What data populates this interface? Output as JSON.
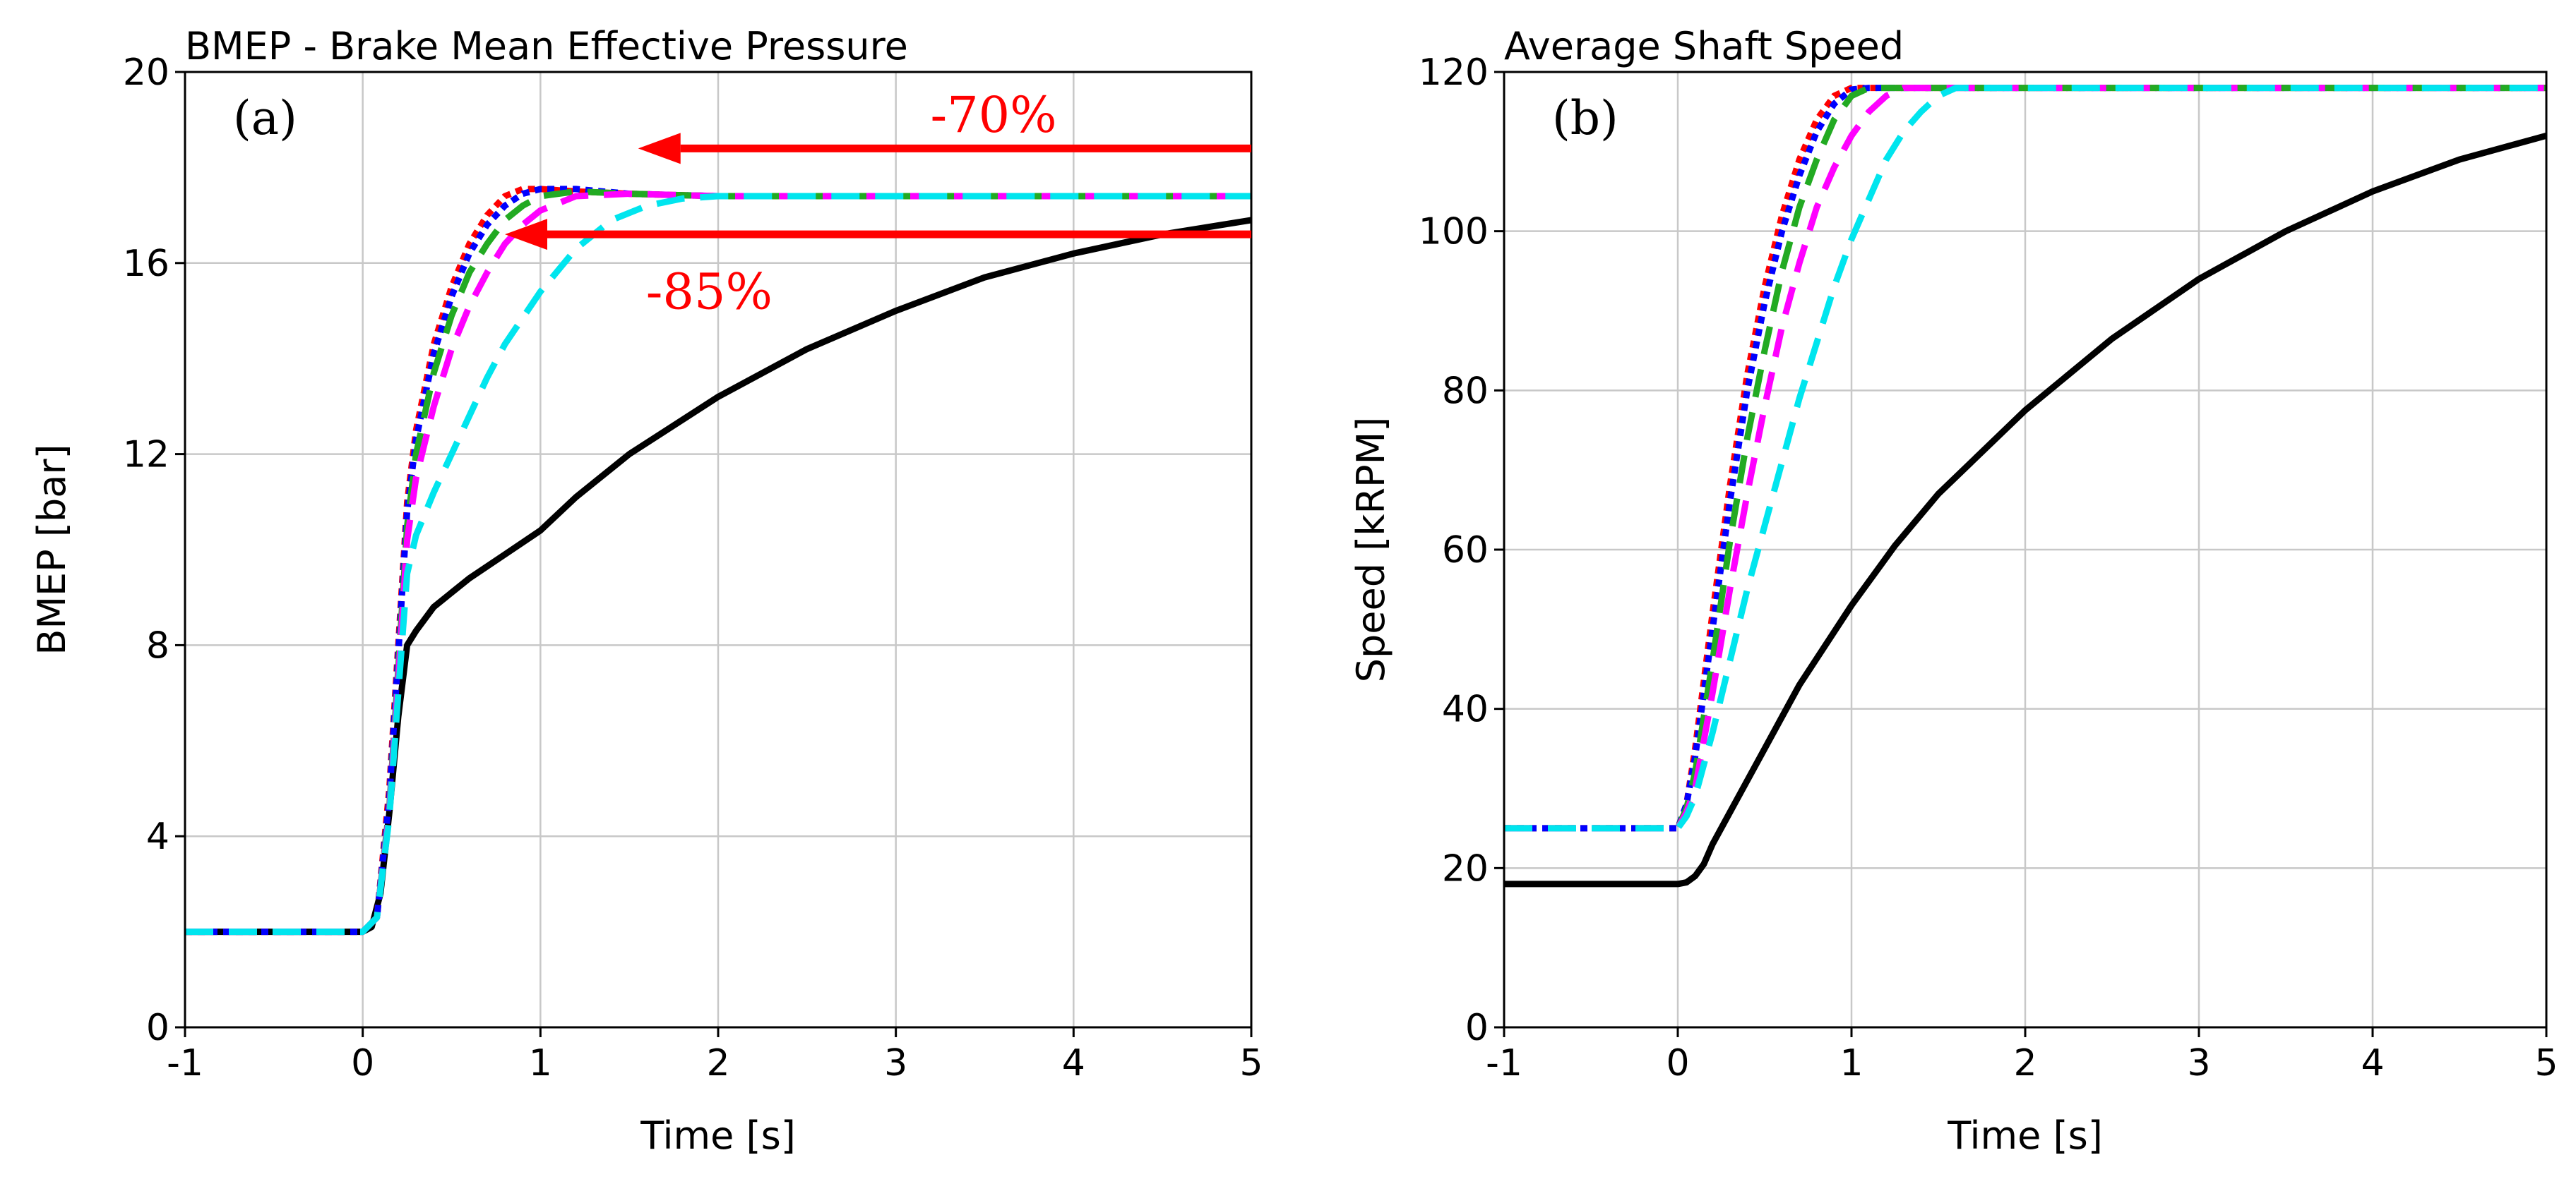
{
  "chart_data": [
    {
      "type": "line",
      "panel_label": "(a)",
      "title": "BMEP - Brake Mean Effective Pressure",
      "xlabel": "Time [s]",
      "ylabel": "BMEP [bar]",
      "xlim": [
        -1,
        5
      ],
      "ylim": [
        0,
        20
      ],
      "xticks": [
        -1,
        0,
        1,
        2,
        3,
        4,
        5
      ],
      "yticks": [
        0,
        4,
        8,
        12,
        16,
        20
      ],
      "grid": true,
      "series": [
        {
          "name": "black solid",
          "color": "#000000",
          "style": "solid",
          "points": [
            [
              -1,
              2
            ],
            [
              0,
              2
            ],
            [
              0.05,
              2.1
            ],
            [
              0.1,
              2.8
            ],
            [
              0.15,
              4.5
            ],
            [
              0.2,
              6.5
            ],
            [
              0.25,
              8
            ],
            [
              0.3,
              8.3
            ],
            [
              0.4,
              8.8
            ],
            [
              0.5,
              9.1
            ],
            [
              0.6,
              9.4
            ],
            [
              0.8,
              9.9
            ],
            [
              1.0,
              10.4
            ],
            [
              1.2,
              11.1
            ],
            [
              1.5,
              12.0
            ],
            [
              2.0,
              13.2
            ],
            [
              2.5,
              14.2
            ],
            [
              3.0,
              15.0
            ],
            [
              3.5,
              15.7
            ],
            [
              4.0,
              16.2
            ],
            [
              4.5,
              16.6
            ],
            [
              5.0,
              16.9
            ]
          ]
        },
        {
          "name": "red dotted",
          "color": "#ff0000",
          "style": "dot",
          "points": [
            [
              -1,
              2
            ],
            [
              0,
              2
            ],
            [
              0.08,
              2.3
            ],
            [
              0.15,
              5
            ],
            [
              0.2,
              8
            ],
            [
              0.25,
              11
            ],
            [
              0.3,
              12.5
            ],
            [
              0.4,
              14.3
            ],
            [
              0.5,
              15.5
            ],
            [
              0.6,
              16.4
            ],
            [
              0.7,
              17.0
            ],
            [
              0.8,
              17.4
            ],
            [
              0.9,
              17.55
            ],
            [
              1.0,
              17.55
            ],
            [
              1.2,
              17.5
            ],
            [
              1.5,
              17.45
            ],
            [
              2.0,
              17.4
            ],
            [
              5.0,
              17.4
            ]
          ]
        },
        {
          "name": "blue dotted",
          "color": "#0000ff",
          "style": "dot",
          "points": [
            [
              -1,
              2
            ],
            [
              0,
              2
            ],
            [
              0.08,
              2.3
            ],
            [
              0.15,
              4.8
            ],
            [
              0.2,
              7.8
            ],
            [
              0.25,
              10.8
            ],
            [
              0.3,
              12.3
            ],
            [
              0.4,
              14.1
            ],
            [
              0.5,
              15.3
            ],
            [
              0.6,
              16.2
            ],
            [
              0.7,
              16.8
            ],
            [
              0.8,
              17.2
            ],
            [
              0.9,
              17.45
            ],
            [
              1.0,
              17.55
            ],
            [
              1.2,
              17.55
            ],
            [
              1.5,
              17.45
            ],
            [
              2.0,
              17.4
            ],
            [
              5.0,
              17.4
            ]
          ]
        },
        {
          "name": "green dashed",
          "color": "#22aa22",
          "style": "dash",
          "points": [
            [
              -1,
              2
            ],
            [
              0,
              2
            ],
            [
              0.08,
              2.3
            ],
            [
              0.15,
              4.6
            ],
            [
              0.2,
              7.5
            ],
            [
              0.25,
              10.5
            ],
            [
              0.3,
              12.0
            ],
            [
              0.4,
              13.7
            ],
            [
              0.5,
              14.9
            ],
            [
              0.6,
              15.8
            ],
            [
              0.7,
              16.4
            ],
            [
              0.8,
              16.9
            ],
            [
              0.9,
              17.2
            ],
            [
              1.0,
              17.4
            ],
            [
              1.2,
              17.5
            ],
            [
              1.5,
              17.45
            ],
            [
              2.0,
              17.4
            ],
            [
              5.0,
              17.4
            ]
          ]
        },
        {
          "name": "magenta dashed",
          "color": "#ff00ff",
          "style": "dash",
          "points": [
            [
              -1,
              2
            ],
            [
              0,
              2
            ],
            [
              0.08,
              2.3
            ],
            [
              0.15,
              4.5
            ],
            [
              0.2,
              7.3
            ],
            [
              0.25,
              10.2
            ],
            [
              0.3,
              11.5
            ],
            [
              0.4,
              13.0
            ],
            [
              0.5,
              14.2
            ],
            [
              0.6,
              15.1
            ],
            [
              0.7,
              15.8
            ],
            [
              0.8,
              16.4
            ],
            [
              0.9,
              16.8
            ],
            [
              1.0,
              17.1
            ],
            [
              1.2,
              17.4
            ],
            [
              1.5,
              17.45
            ],
            [
              2.0,
              17.4
            ],
            [
              5.0,
              17.4
            ]
          ]
        },
        {
          "name": "cyan dashed",
          "color": "#00e5ee",
          "style": "dash",
          "points": [
            [
              -1,
              2
            ],
            [
              0,
              2
            ],
            [
              0.08,
              2.3
            ],
            [
              0.15,
              4.4
            ],
            [
              0.2,
              7.0
            ],
            [
              0.25,
              9.5
            ],
            [
              0.3,
              10.3
            ],
            [
              0.4,
              11.2
            ],
            [
              0.5,
              12.0
            ],
            [
              0.6,
              12.8
            ],
            [
              0.7,
              13.6
            ],
            [
              0.8,
              14.3
            ],
            [
              1.0,
              15.4
            ],
            [
              1.2,
              16.3
            ],
            [
              1.4,
              16.9
            ],
            [
              1.6,
              17.2
            ],
            [
              1.8,
              17.35
            ],
            [
              2.0,
              17.4
            ],
            [
              5.0,
              17.4
            ]
          ]
        }
      ],
      "annotations": [
        {
          "text": "-70%",
          "color": "#ff0000",
          "arrow": {
            "from": [
              5.0,
              18.4
            ],
            "to": [
              1.55,
              18.4
            ]
          },
          "label_at": [
            3.55,
            19.1
          ]
        },
        {
          "text": "-85%",
          "color": "#ff0000",
          "arrow": {
            "from": [
              5.0,
              16.6
            ],
            "to": [
              0.8,
              16.6
            ]
          },
          "label_at": [
            1.95,
            15.4
          ]
        }
      ]
    },
    {
      "type": "line",
      "panel_label": "(b)",
      "title": "Average Shaft Speed",
      "xlabel": "Time [s]",
      "ylabel": "Speed [kRPM]",
      "xlim": [
        -1,
        5
      ],
      "ylim": [
        0,
        120
      ],
      "xticks": [
        -1,
        0,
        1,
        2,
        3,
        4,
        5
      ],
      "yticks": [
        0,
        20,
        40,
        60,
        80,
        100,
        120
      ],
      "grid": true,
      "series": [
        {
          "name": "black solid",
          "color": "#000000",
          "style": "solid",
          "points": [
            [
              -1,
              18
            ],
            [
              0,
              18
            ],
            [
              0.05,
              18.2
            ],
            [
              0.1,
              19
            ],
            [
              0.15,
              20.5
            ],
            [
              0.2,
              23
            ],
            [
              0.3,
              27
            ],
            [
              0.5,
              35
            ],
            [
              0.7,
              43
            ],
            [
              1.0,
              53
            ],
            [
              1.25,
              60.5
            ],
            [
              1.5,
              67
            ],
            [
              2.0,
              77.5
            ],
            [
              2.5,
              86.5
            ],
            [
              3.0,
              94
            ],
            [
              3.5,
              100
            ],
            [
              4.0,
              105
            ],
            [
              4.5,
              109
            ],
            [
              5.0,
              112
            ]
          ]
        },
        {
          "name": "red dotted",
          "color": "#ff0000",
          "style": "dot",
          "points": [
            [
              -1,
              25
            ],
            [
              0,
              25
            ],
            [
              0.05,
              28
            ],
            [
              0.1,
              35
            ],
            [
              0.2,
              52
            ],
            [
              0.3,
              68
            ],
            [
              0.4,
              82
            ],
            [
              0.5,
              93
            ],
            [
              0.6,
              102
            ],
            [
              0.7,
              109
            ],
            [
              0.8,
              114
            ],
            [
              0.9,
              117
            ],
            [
              1.0,
              118
            ],
            [
              5.0,
              118
            ]
          ]
        },
        {
          "name": "blue dotted",
          "color": "#0000ff",
          "style": "dot",
          "points": [
            [
              -1,
              25
            ],
            [
              0,
              25
            ],
            [
              0.05,
              28
            ],
            [
              0.1,
              34
            ],
            [
              0.2,
              50
            ],
            [
              0.3,
              66
            ],
            [
              0.4,
              80
            ],
            [
              0.5,
              91
            ],
            [
              0.6,
              100
            ],
            [
              0.7,
              107
            ],
            [
              0.8,
              112.5
            ],
            [
              0.9,
              116
            ],
            [
              1.0,
              117.8
            ],
            [
              1.1,
              118
            ],
            [
              5.0,
              118
            ]
          ]
        },
        {
          "name": "green dashed",
          "color": "#22aa22",
          "style": "dash",
          "points": [
            [
              -1,
              25
            ],
            [
              0,
              25
            ],
            [
              0.05,
              27.5
            ],
            [
              0.1,
              32
            ],
            [
              0.2,
              46
            ],
            [
              0.3,
              61
            ],
            [
              0.4,
              74
            ],
            [
              0.5,
              85
            ],
            [
              0.6,
              95
            ],
            [
              0.7,
              103
            ],
            [
              0.8,
              109
            ],
            [
              0.9,
              114
            ],
            [
              1.0,
              117
            ],
            [
              1.1,
              118
            ],
            [
              5.0,
              118
            ]
          ]
        },
        {
          "name": "magenta dashed",
          "color": "#ff00ff",
          "style": "dash",
          "points": [
            [
              -1,
              25
            ],
            [
              0,
              25
            ],
            [
              0.05,
              27
            ],
            [
              0.1,
              30
            ],
            [
              0.2,
              42
            ],
            [
              0.3,
              55
            ],
            [
              0.4,
              67
            ],
            [
              0.5,
              78
            ],
            [
              0.6,
              88
            ],
            [
              0.7,
              96
            ],
            [
              0.8,
              103
            ],
            [
              0.9,
              108
            ],
            [
              1.0,
              112
            ],
            [
              1.1,
              115
            ],
            [
              1.2,
              117
            ],
            [
              1.3,
              118
            ],
            [
              5.0,
              118
            ]
          ]
        },
        {
          "name": "cyan dashed",
          "color": "#00e5ee",
          "style": "dash",
          "points": [
            [
              -1,
              25
            ],
            [
              0,
              25
            ],
            [
              0.05,
              26.5
            ],
            [
              0.1,
              29
            ],
            [
              0.2,
              37
            ],
            [
              0.3,
              46
            ],
            [
              0.4,
              55
            ],
            [
              0.5,
              63
            ],
            [
              0.6,
              71
            ],
            [
              0.7,
              79
            ],
            [
              0.8,
              86
            ],
            [
              0.9,
              93
            ],
            [
              1.0,
              99
            ],
            [
              1.1,
              104
            ],
            [
              1.2,
              109
            ],
            [
              1.3,
              112.5
            ],
            [
              1.4,
              115
            ],
            [
              1.5,
              117
            ],
            [
              1.6,
              118
            ],
            [
              5.0,
              118
            ]
          ]
        }
      ],
      "annotations": []
    }
  ]
}
